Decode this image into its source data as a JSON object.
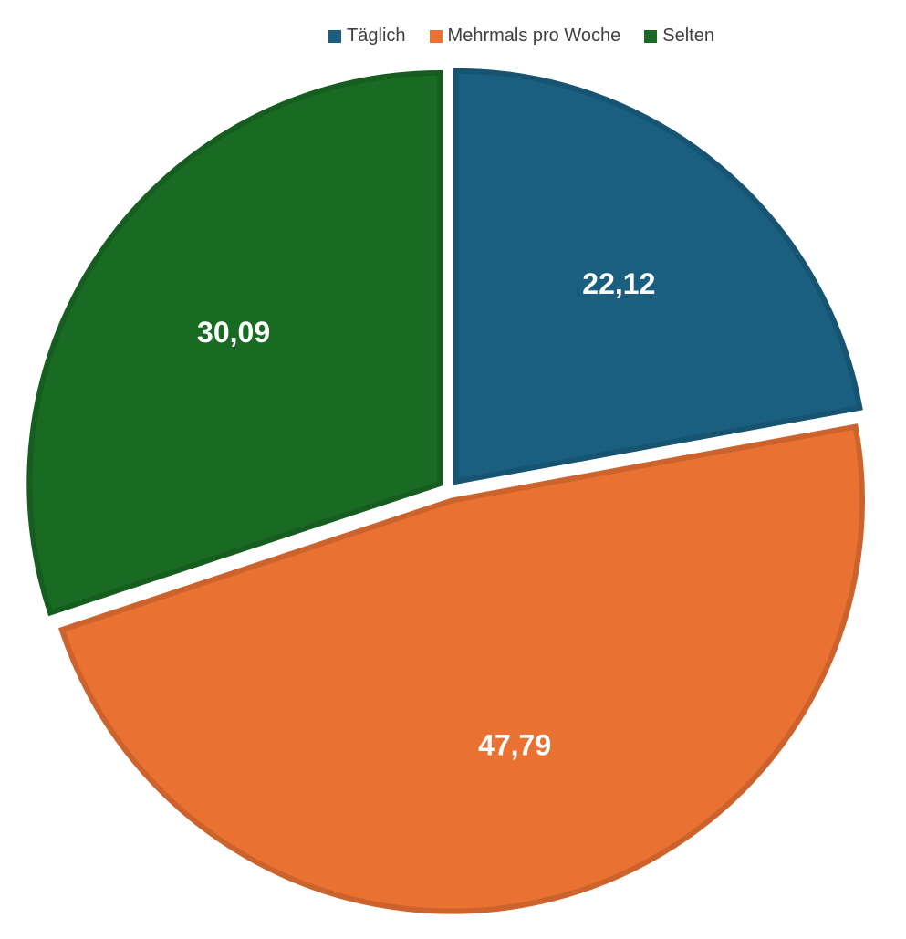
{
  "chart_data": {
    "type": "pie",
    "categories": [
      "Täglich",
      "Mehrmals pro Woche",
      "Selten"
    ],
    "values": [
      22.12,
      47.79,
      30.09
    ],
    "value_labels": [
      "22,12",
      "47,79",
      "30,09"
    ],
    "colors": [
      "#1a5f80",
      "#e97132",
      "#196b24"
    ],
    "legend": "top"
  }
}
